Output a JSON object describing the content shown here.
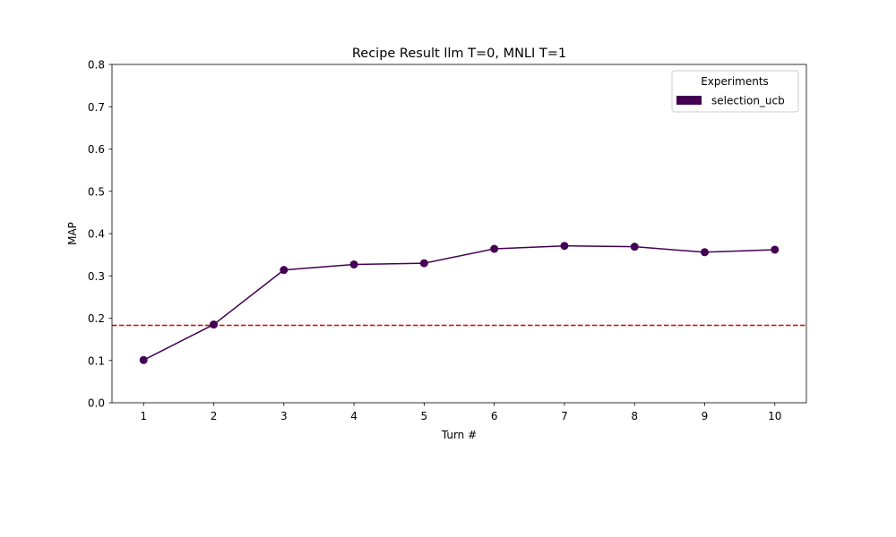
{
  "chart_data": {
    "type": "line",
    "title": "Recipe Result llm T=0, MNLI T=1",
    "xlabel": "Turn #",
    "ylabel": "MAP",
    "x": [
      1,
      2,
      3,
      4,
      5,
      6,
      7,
      8,
      9,
      10
    ],
    "xlim": [
      0.55,
      10.45
    ],
    "ylim": [
      0,
      0.8
    ],
    "yticks": [
      0.0,
      0.1,
      0.2,
      0.3,
      0.4,
      0.5,
      0.6,
      0.7,
      0.8
    ],
    "ytick_labels": [
      "0.0",
      "0.1",
      "0.2",
      "0.3",
      "0.4",
      "0.5",
      "0.6",
      "0.7",
      "0.8"
    ],
    "xtick_labels": [
      "1",
      "2",
      "3",
      "4",
      "5",
      "6",
      "7",
      "8",
      "9",
      "10"
    ],
    "series": [
      {
        "name": "selection_ucb",
        "values": [
          0.101,
          0.185,
          0.314,
          0.327,
          0.33,
          0.364,
          0.371,
          0.369,
          0.356,
          0.362
        ],
        "color": "#440154"
      }
    ],
    "reference_line": {
      "y": 0.183,
      "color": "#dd0000",
      "style": "dashed"
    },
    "legend": {
      "title": "Experiments",
      "placement": "top-right"
    },
    "grid": false
  }
}
